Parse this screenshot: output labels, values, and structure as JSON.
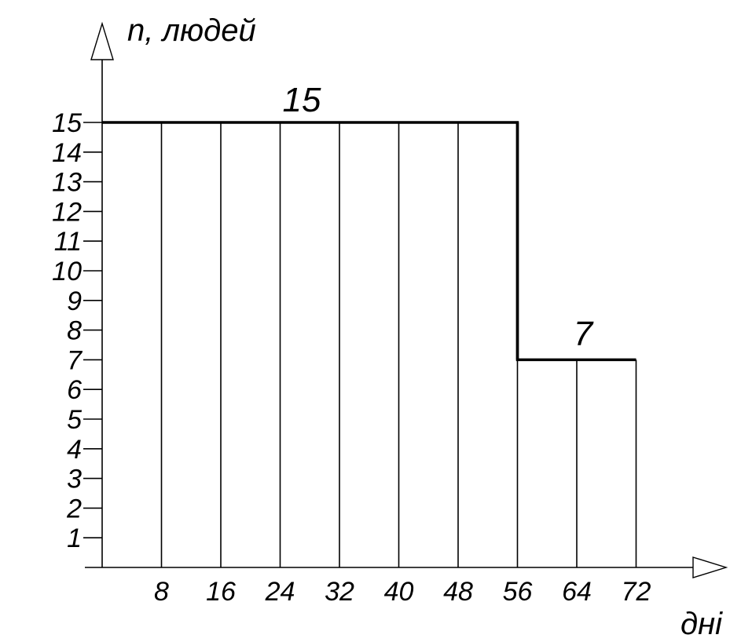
{
  "chart_data": {
    "type": "bar",
    "ylabel": "n, людей",
    "xlabel": "дні",
    "x_ticks": [
      "8",
      "16",
      "24",
      "32",
      "40",
      "48",
      "56",
      "64",
      "72"
    ],
    "y_ticks": [
      "1",
      "2",
      "3",
      "4",
      "5",
      "6",
      "7",
      "8",
      "9",
      "10",
      "11",
      "12",
      "13",
      "14",
      "15"
    ],
    "xlim": [
      0,
      72
    ],
    "ylim": [
      0,
      15
    ],
    "segments": [
      {
        "x_start": 0,
        "x_end": 56,
        "value": 15,
        "label": "15"
      },
      {
        "x_start": 56,
        "x_end": 72,
        "value": 7,
        "label": "7"
      }
    ],
    "grid_x": [
      8,
      16,
      24,
      32,
      40,
      48,
      56,
      64,
      72
    ],
    "legend": "none"
  }
}
